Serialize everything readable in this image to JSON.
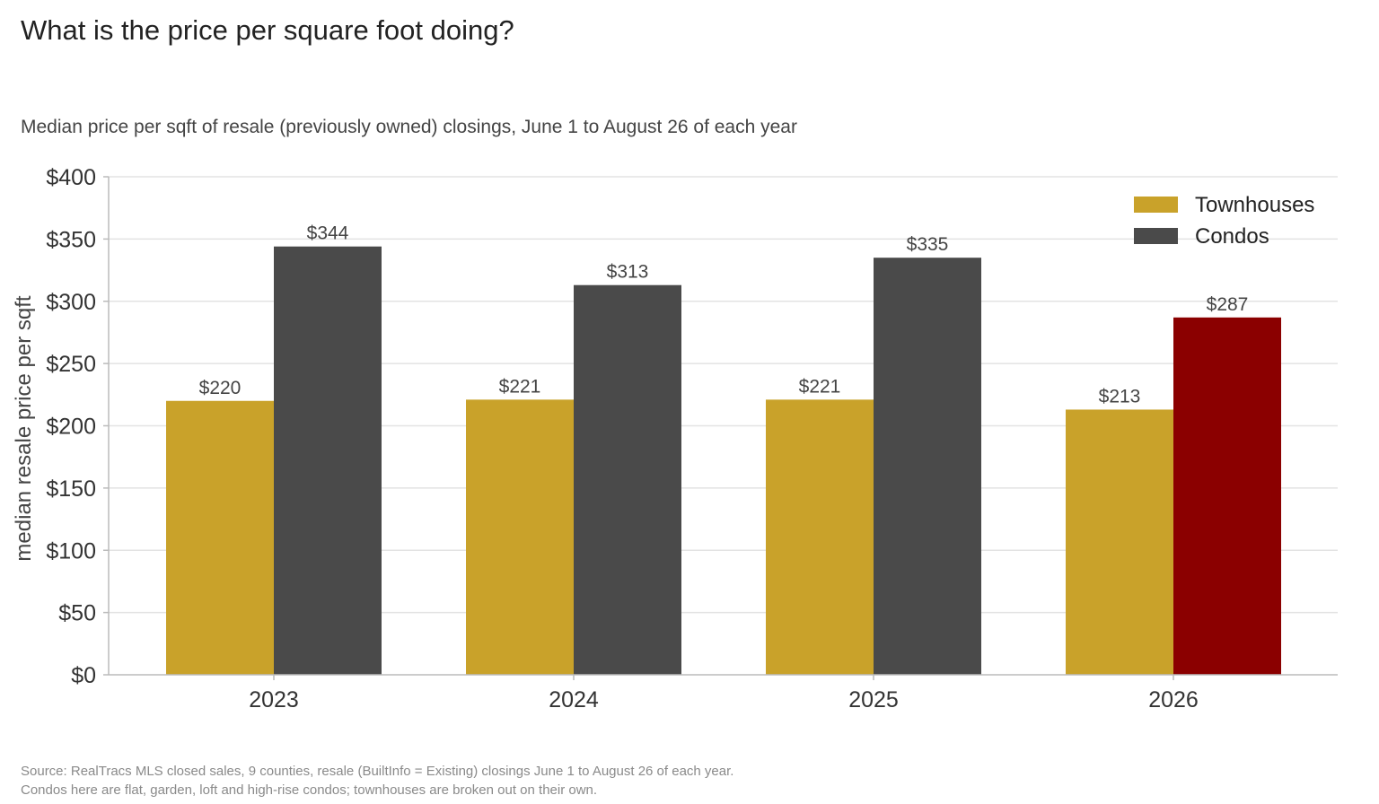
{
  "title": "What is the price per square foot doing?",
  "subtitle": "Median price per sqft of resale (previously owned) closings, June 1 to August 26 of each year",
  "source_lines": [
    "Source: RealTracs MLS closed sales, 9 counties, resale (BuiltInfo = Existing) closings June 1 to August 26 of each year.",
    "Condos here are flat, garden, loft and high-rise condos; townhouses are broken out on their own."
  ],
  "colors": {
    "townhouses": "#C9A22A",
    "condos": "#4A4A4A",
    "highlight": "#8B0000",
    "grid": "#E3E3E3",
    "axis": "#BBBBBB"
  },
  "chart_data": {
    "type": "bar",
    "title": "What is the price per square foot doing?",
    "subtitle": "Median price per sqft of resale (previously owned) closings, June 1 to August 26 of each year",
    "xlabel": "",
    "ylabel": "median resale price per sqft",
    "categories": [
      "2023",
      "2024",
      "2025",
      "2026"
    ],
    "series": [
      {
        "name": "Townhouses",
        "values": [
          220,
          221,
          221,
          213
        ],
        "labels": [
          "$220",
          "$221",
          "$221",
          "$213"
        ]
      },
      {
        "name": "Condos",
        "values": [
          344,
          313,
          335,
          287
        ],
        "labels": [
          "$344",
          "$313",
          "$335",
          "$287"
        ],
        "highlight_index": 3
      }
    ],
    "ylim": [
      0,
      400
    ],
    "yticks": [
      0,
      50,
      100,
      150,
      200,
      250,
      300,
      350,
      400
    ],
    "ytick_labels": [
      "$0",
      "$50",
      "$100",
      "$150",
      "$200",
      "$250",
      "$300",
      "$350",
      "$400"
    ],
    "grid": true,
    "legend_position": "top-right"
  }
}
